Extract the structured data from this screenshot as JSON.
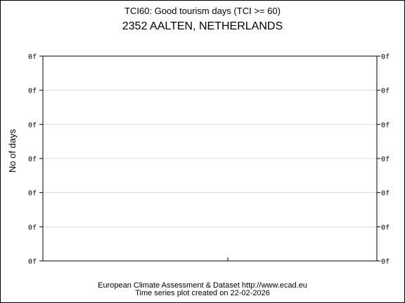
{
  "chart_data": {
    "type": "line",
    "title": "TCI60: Good tourism days (TCI >= 60)",
    "subtitle": "2352 AALTEN, NETHERLANDS",
    "ylabel": "No of days",
    "xlabel": "",
    "y_tick_labels": [
      "0f",
      "0f",
      "0f",
      "0f",
      "0f",
      "0f",
      "0f"
    ],
    "series": [],
    "grid": true,
    "legend": "none"
  },
  "footer": {
    "line1": "European Climate Assessment & Dataset  http://www.ecad.eu",
    "line2": "Time series plot created on 22-02-2026"
  },
  "colors": {
    "axis": "#000000",
    "grid": "#d8d8d8",
    "background": "#ffffff"
  }
}
